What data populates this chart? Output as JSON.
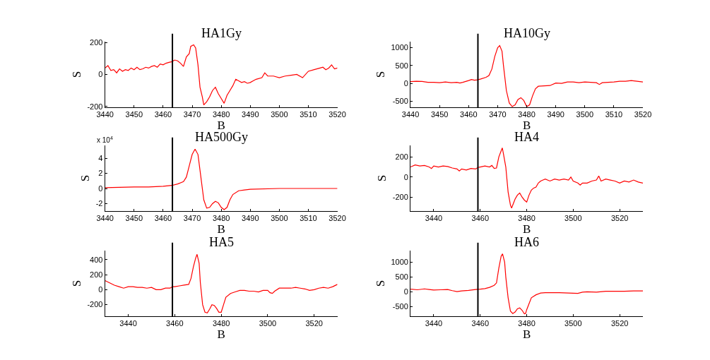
{
  "chart_data": [
    {
      "type": "line",
      "title": "HA1Gy",
      "xlabel": "B",
      "ylabel": "S",
      "xlim": [
        3440,
        3520
      ],
      "xticks": [
        3440,
        3450,
        3460,
        3470,
        3480,
        3490,
        3500,
        3510,
        3520
      ],
      "ylim": [
        -205,
        205
      ],
      "yticks": [
        -200,
        0,
        200
      ],
      "ref_lines": [
        {
          "axis": "x",
          "value": 3463.2,
          "color": "#000000"
        }
      ],
      "series": [
        {
          "color": "#ff0000",
          "x": [
            3440,
            3441,
            3442,
            3443,
            3444,
            3445,
            3446,
            3447,
            3448,
            3449,
            3450,
            3451,
            3452,
            3453,
            3454,
            3455,
            3456,
            3457,
            3458,
            3459,
            3460,
            3461,
            3462,
            3463,
            3464,
            3465,
            3466,
            3467,
            3468,
            3469,
            3469.5,
            3470.5,
            3471.2,
            3472,
            3472.7,
            3473.5,
            3474,
            3475,
            3476,
            3477,
            3478,
            3479,
            3480,
            3481,
            3482,
            3483,
            3484,
            3485,
            3486,
            3487,
            3488,
            3489,
            3490,
            3491,
            3492,
            3494,
            3495,
            3496,
            3498,
            3500,
            3502,
            3504,
            3506,
            3508,
            3510,
            3512,
            3514,
            3515,
            3516,
            3517,
            3518,
            3519,
            3520
          ],
          "values": [
            40,
            55,
            25,
            30,
            10,
            35,
            20,
            30,
            25,
            40,
            30,
            45,
            30,
            35,
            45,
            40,
            50,
            55,
            45,
            65,
            60,
            70,
            75,
            80,
            90,
            85,
            70,
            50,
            110,
            130,
            175,
            185,
            165,
            60,
            -80,
            -140,
            -190,
            -170,
            -140,
            -100,
            -80,
            -120,
            -150,
            -180,
            -130,
            -100,
            -70,
            -30,
            -40,
            -50,
            -45,
            -55,
            -50,
            -40,
            -30,
            -20,
            10,
            -10,
            -10,
            -20,
            -10,
            -5,
            0,
            -20,
            20,
            30,
            40,
            45,
            30,
            40,
            60,
            35,
            40
          ]
        }
      ]
    },
    {
      "type": "line",
      "title": "HA10Gy",
      "xlabel": "B",
      "ylabel": "S",
      "xlim": [
        3440,
        3520
      ],
      "xticks": [
        3440,
        3450,
        3460,
        3470,
        3480,
        3490,
        3500,
        3510,
        3520
      ],
      "ylim": [
        -670,
        1170
      ],
      "yticks": [
        -500,
        0,
        500,
        1000
      ],
      "ref_lines": [
        {
          "axis": "x",
          "value": 3463.2,
          "color": "#000000"
        }
      ],
      "series": [
        {
          "color": "#ff0000",
          "x": [
            3440,
            3442,
            3444,
            3446,
            3448,
            3450,
            3452,
            3454,
            3456,
            3457,
            3458,
            3460,
            3461,
            3462,
            3463,
            3464,
            3466,
            3467,
            3468,
            3469,
            3470,
            3470.7,
            3471.5,
            3472,
            3473,
            3474,
            3475,
            3476,
            3477,
            3478,
            3479,
            3480,
            3481,
            3482,
            3483,
            3484,
            3486,
            3488,
            3490,
            3492,
            3494,
            3496,
            3498,
            3500,
            3502,
            3504,
            3505,
            3506,
            3508,
            3510,
            3512,
            3514,
            3516,
            3518,
            3520
          ],
          "values": [
            50,
            60,
            55,
            30,
            30,
            20,
            40,
            20,
            30,
            10,
            30,
            80,
            110,
            90,
            100,
            120,
            170,
            220,
            400,
            750,
            1000,
            1060,
            900,
            500,
            -200,
            -550,
            -650,
            -600,
            -450,
            -400,
            -480,
            -650,
            -600,
            -350,
            -150,
            -80,
            -70,
            -60,
            10,
            0,
            40,
            40,
            20,
            40,
            30,
            20,
            -30,
            20,
            30,
            40,
            60,
            60,
            80,
            60,
            40
          ]
        }
      ]
    },
    {
      "type": "line",
      "title": "HA500Gy",
      "xlabel": "B",
      "ylabel": "S",
      "annotations": [
        "x 10$^{4}$"
      ],
      "xlim": [
        3440,
        3520
      ],
      "xticks": [
        3440,
        3450,
        3460,
        3470,
        3480,
        3490,
        3500,
        3510,
        3520
      ],
      "ylim": [
        -3,
        5.7
      ],
      "yticks": [
        -2,
        0,
        2,
        4
      ],
      "ref_lines": [
        {
          "axis": "x",
          "value": 3463.2,
          "color": "#000000"
        }
      ],
      "series": [
        {
          "color": "#ff0000",
          "x": [
            3440,
            3450,
            3455,
            3460,
            3463,
            3465,
            3467,
            3468,
            3469,
            3470,
            3471,
            3472,
            3473,
            3474,
            3475,
            3476,
            3477,
            3478,
            3479,
            3480,
            3481,
            3482,
            3483,
            3484,
            3486,
            3488,
            3490,
            3500,
            3510,
            3520
          ],
          "values": [
            0.1,
            0.2,
            0.2,
            0.3,
            0.4,
            0.6,
            0.9,
            1.5,
            3.0,
            4.5,
            5.2,
            4.5,
            1.5,
            -1.5,
            -2.6,
            -2.5,
            -2.0,
            -1.7,
            -1.9,
            -2.5,
            -2.8,
            -2.5,
            -1.5,
            -0.8,
            -0.3,
            -0.2,
            -0.1,
            0,
            0,
            0
          ]
        }
      ]
    },
    {
      "type": "line",
      "title": "HA4",
      "xlabel": "B",
      "ylabel": "S",
      "xlim": [
        3430,
        3530
      ],
      "xticks": [
        3440,
        3460,
        3480,
        3500,
        3520
      ],
      "ylim": [
        -340,
        315
      ],
      "yticks": [
        -200,
        0,
        200
      ],
      "ref_lines": [
        {
          "axis": "x",
          "value": 3459,
          "color": "#000000"
        }
      ],
      "series": [
        {
          "color": "#ff0000",
          "x": [
            3430,
            3432,
            3434,
            3436,
            3438,
            3439,
            3440,
            3442,
            3444,
            3446,
            3448,
            3450,
            3451,
            3452,
            3454,
            3456,
            3458,
            3459,
            3460,
            3462,
            3464,
            3465,
            3466,
            3467,
            3468,
            3469,
            3469.5,
            3470,
            3471,
            3472,
            3473,
            3473.5,
            3474,
            3475,
            3476,
            3477,
            3478,
            3479,
            3480,
            3481,
            3482,
            3483,
            3484,
            3485,
            3486,
            3487,
            3488,
            3490,
            3492,
            3494,
            3496,
            3498,
            3499,
            3500,
            3502,
            3503,
            3504,
            3506,
            3508,
            3510,
            3511,
            3512,
            3514,
            3516,
            3518,
            3520,
            3522,
            3524,
            3526,
            3528,
            3530
          ],
          "values": [
            100,
            120,
            110,
            115,
            100,
            85,
            110,
            100,
            110,
            105,
            90,
            80,
            60,
            80,
            70,
            85,
            80,
            95,
            100,
            110,
            100,
            115,
            85,
            90,
            200,
            260,
            290,
            230,
            100,
            -150,
            -280,
            -310,
            -280,
            -220,
            -180,
            -160,
            -200,
            -230,
            -250,
            -180,
            -130,
            -110,
            -100,
            -60,
            -40,
            -30,
            -20,
            -40,
            -20,
            -30,
            -20,
            -30,
            0,
            -40,
            -60,
            -80,
            -60,
            -60,
            -40,
            -30,
            10,
            -40,
            -20,
            -30,
            -40,
            -60,
            -40,
            -50,
            -30,
            -50,
            -60
          ]
        }
      ]
    },
    {
      "type": "line",
      "title": "HA5",
      "xlabel": "B",
      "ylabel": "S",
      "xlim": [
        3430,
        3530
      ],
      "xticks": [
        3440,
        3460,
        3480,
        3500,
        3520
      ],
      "ylim": [
        -355,
        520
      ],
      "yticks": [
        -200,
        0,
        200,
        400
      ],
      "ref_lines": [
        {
          "axis": "x",
          "value": 3459,
          "color": "#000000"
        }
      ],
      "series": [
        {
          "color": "#ff0000",
          "x": [
            3430,
            3432,
            3434,
            3436,
            3438,
            3440,
            3442,
            3444,
            3446,
            3448,
            3450,
            3452,
            3454,
            3456,
            3458,
            3459,
            3460,
            3462,
            3464,
            3466,
            3467,
            3468,
            3469,
            3469.6,
            3470.5,
            3471,
            3472,
            3473,
            3474,
            3475,
            3476,
            3477,
            3478,
            3479,
            3480,
            3481,
            3482,
            3484,
            3486,
            3488,
            3490,
            3492,
            3494,
            3496,
            3498,
            3500,
            3501,
            3502,
            3503,
            3505,
            3507,
            3510,
            3512,
            3514,
            3516,
            3518,
            3520,
            3522,
            3524,
            3526,
            3528,
            3530
          ],
          "values": [
            120,
            90,
            60,
            40,
            20,
            40,
            40,
            30,
            30,
            20,
            30,
            0,
            0,
            20,
            20,
            40,
            40,
            50,
            60,
            70,
            150,
            300,
            420,
            470,
            350,
            100,
            -200,
            -300,
            -310,
            -260,
            -200,
            -210,
            -250,
            -300,
            -300,
            -200,
            -100,
            -50,
            -30,
            -10,
            -10,
            -20,
            -20,
            -30,
            -10,
            -10,
            -40,
            -50,
            -20,
            20,
            20,
            20,
            30,
            20,
            10,
            -10,
            0,
            20,
            30,
            20,
            40,
            70
          ]
        }
      ]
    },
    {
      "type": "line",
      "title": "HA6",
      "xlabel": "B",
      "ylabel": "S",
      "xlim": [
        3430,
        3530
      ],
      "xticks": [
        3440,
        3460,
        3480,
        3500,
        3520
      ],
      "ylim": [
        -825,
        1390
      ],
      "yticks": [
        -500,
        0,
        500,
        1000
      ],
      "ref_lines": [
        {
          "axis": "x",
          "value": 3459,
          "color": "#000000"
        }
      ],
      "series": [
        {
          "color": "#ff0000",
          "x": [
            3430,
            3433,
            3436,
            3438,
            3440,
            3443,
            3446,
            3448,
            3450,
            3452,
            3455,
            3458,
            3460,
            3462,
            3464,
            3466,
            3467,
            3468,
            3469,
            3469.6,
            3470.5,
            3471,
            3472,
            3473,
            3474,
            3475,
            3476,
            3477,
            3478,
            3479,
            3479.5,
            3480,
            3481,
            3482,
            3484,
            3486,
            3488,
            3490,
            3494,
            3498,
            3502,
            3504,
            3506,
            3510,
            3514,
            3518,
            3522,
            3526,
            3530
          ],
          "values": [
            90,
            70,
            100,
            80,
            60,
            70,
            80,
            40,
            10,
            30,
            50,
            80,
            90,
            110,
            150,
            220,
            300,
            800,
            1200,
            1280,
            1000,
            500,
            -200,
            -650,
            -730,
            -680,
            -570,
            -540,
            -620,
            -740,
            -730,
            -600,
            -400,
            -200,
            -100,
            -40,
            -30,
            -30,
            -30,
            -40,
            -50,
            -10,
            0,
            -10,
            20,
            20,
            20,
            30,
            30
          ]
        }
      ]
    }
  ]
}
